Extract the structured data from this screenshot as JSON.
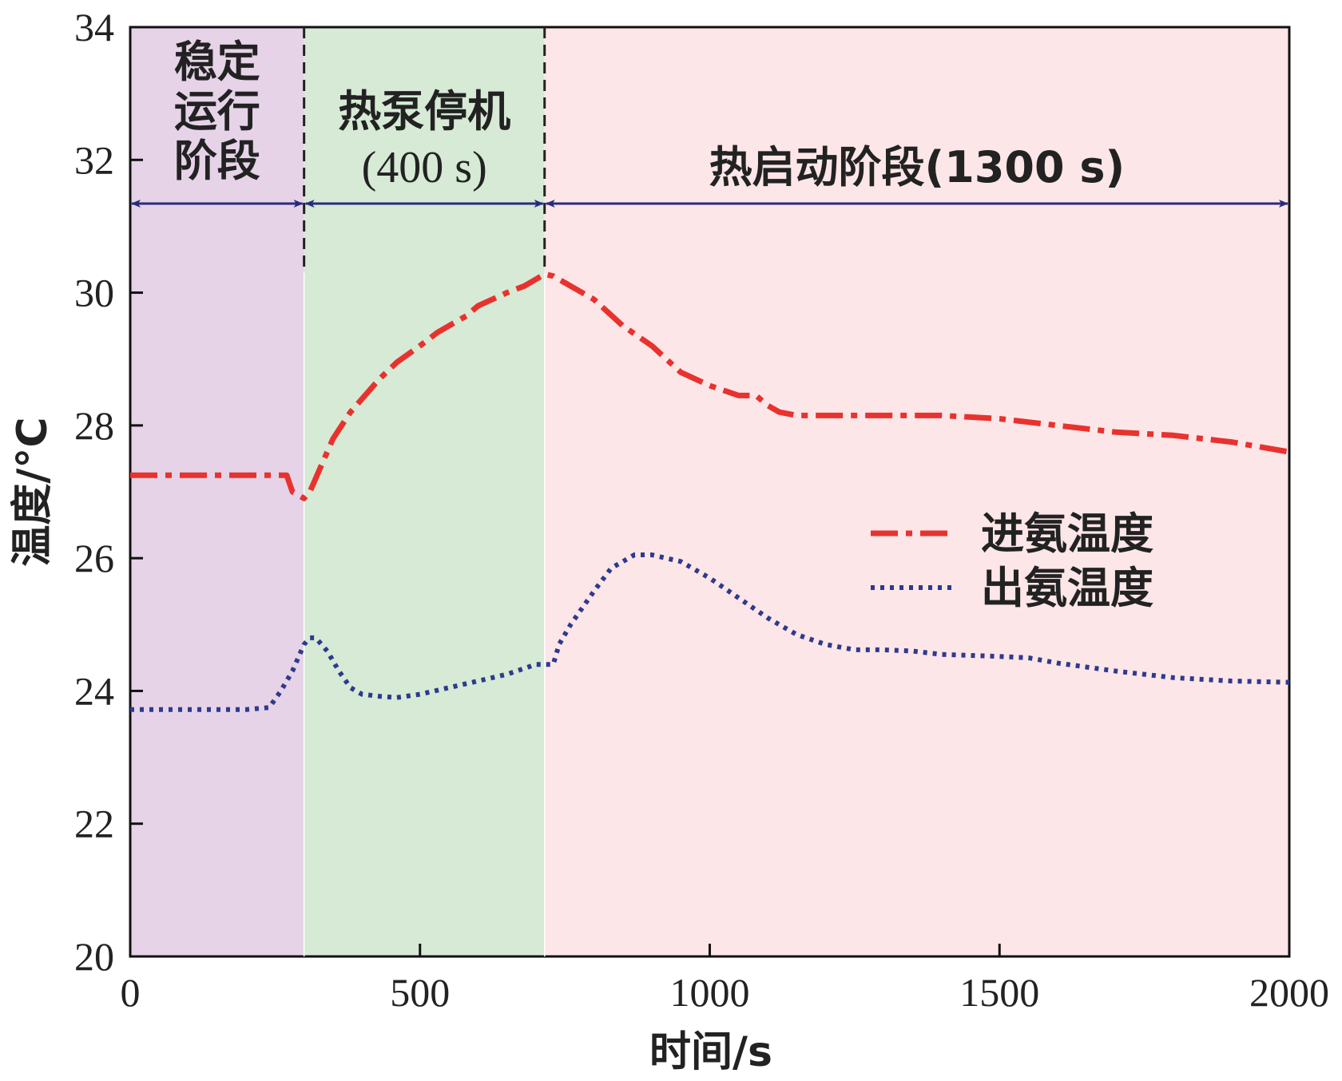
{
  "chart_data": {
    "type": "line",
    "xlabel": "时间/s",
    "ylabel": "温度/°C",
    "xlim": [
      0,
      2000
    ],
    "ylim": [
      20,
      34
    ],
    "xticks": [
      0,
      500,
      1000,
      1500,
      2000
    ],
    "yticks": [
      20,
      22,
      24,
      26,
      28,
      30,
      32,
      34
    ],
    "grid": false,
    "legend_position": "right-middle",
    "phases": [
      {
        "label_lines": [
          "稳定",
          "运行",
          "阶段"
        ],
        "start": 0,
        "end": 300,
        "color": "#e6d3e8"
      },
      {
        "label_lines": [
          "热泵停机",
          "(400 s)"
        ],
        "start": 300,
        "end": 715,
        "color": "#d6ead6"
      },
      {
        "label_lines": [
          "热启动阶段(1300 s)"
        ],
        "start": 715,
        "end": 2000,
        "color": "#fde6e8"
      }
    ],
    "phase_boundaries": [
      300,
      715
    ],
    "series": [
      {
        "name": "进氨温度",
        "color": "#e8322e",
        "style": "dashdot",
        "x": [
          0,
          100,
          200,
          270,
          280,
          300,
          310,
          330,
          350,
          380,
          400,
          430,
          460,
          500,
          530,
          550,
          580,
          600,
          650,
          680,
          700,
          715,
          730,
          760,
          800,
          850,
          900,
          950,
          1000,
          1050,
          1080,
          1100,
          1120,
          1150,
          1200,
          1300,
          1400,
          1500,
          1550,
          1600,
          1700,
          1800,
          1900,
          2000
        ],
        "y": [
          27.25,
          27.25,
          27.25,
          27.25,
          27.0,
          26.9,
          27.0,
          27.4,
          27.8,
          28.2,
          28.4,
          28.7,
          28.95,
          29.2,
          29.4,
          29.5,
          29.65,
          29.8,
          30.0,
          30.1,
          30.2,
          30.28,
          30.25,
          30.1,
          29.9,
          29.5,
          29.2,
          28.8,
          28.6,
          28.45,
          28.45,
          28.3,
          28.2,
          28.15,
          28.15,
          28.15,
          28.15,
          28.1,
          28.05,
          28.0,
          27.9,
          27.85,
          27.75,
          27.6
        ]
      },
      {
        "name": "出氨温度",
        "color": "#2e3a8c",
        "style": "dotted",
        "x": [
          0,
          100,
          200,
          240,
          260,
          280,
          300,
          310,
          320,
          340,
          360,
          380,
          400,
          430,
          460,
          500,
          550,
          600,
          650,
          700,
          730,
          740,
          760,
          800,
          830,
          870,
          900,
          950,
          1000,
          1050,
          1100,
          1150,
          1200,
          1250,
          1300,
          1350,
          1400,
          1500,
          1550,
          1600,
          1700,
          1800,
          1900,
          2000
        ],
        "y": [
          23.72,
          23.72,
          23.72,
          23.75,
          24.0,
          24.3,
          24.7,
          24.8,
          24.8,
          24.6,
          24.3,
          24.05,
          23.95,
          23.92,
          23.9,
          23.95,
          24.05,
          24.15,
          24.25,
          24.4,
          24.4,
          24.7,
          25.0,
          25.5,
          25.85,
          26.05,
          26.05,
          25.95,
          25.7,
          25.4,
          25.1,
          24.85,
          24.7,
          24.62,
          24.62,
          24.6,
          24.55,
          24.52,
          24.5,
          24.42,
          24.3,
          24.2,
          24.15,
          24.13
        ]
      }
    ]
  }
}
